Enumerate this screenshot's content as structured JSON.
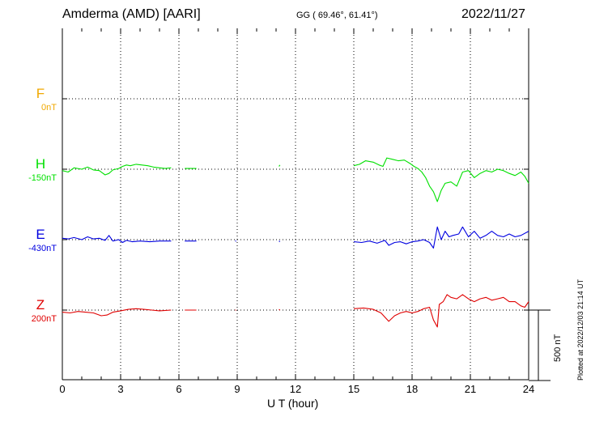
{
  "header": {
    "station": "Amderma (AMD)  [AARI]",
    "coords": "GG ( 69.46°,  61.41°)",
    "date": "2022/11/27"
  },
  "footnote": "Plotted at 2022/12/03 21:14 UT",
  "scale_bar": {
    "label": "500 nT",
    "value_nT": 500
  },
  "colors": {
    "F": "#f0a800",
    "H": "#00e000",
    "E": "#0000e0",
    "Z": "#e00000",
    "axis": "#000000"
  },
  "chart_data": {
    "type": "line",
    "xlabel": "U T (hour)",
    "xlim": [
      0,
      24
    ],
    "xticks": [
      "0",
      "3",
      "6",
      "9",
      "12",
      "15",
      "18",
      "21",
      "24"
    ],
    "grid": true,
    "channels": [
      {
        "name": "F",
        "offset_label": "0nT",
        "data": []
      },
      {
        "name": "H",
        "offset_label": "-150nT",
        "data": [
          [
            0,
            -10
          ],
          [
            0.3,
            -20
          ],
          [
            0.6,
            10
          ],
          [
            1.0,
            0
          ],
          [
            1.3,
            15
          ],
          [
            1.6,
            -5
          ],
          [
            1.9,
            -10
          ],
          [
            2.2,
            -40
          ],
          [
            2.4,
            -30
          ],
          [
            2.6,
            -5
          ],
          [
            2.9,
            5
          ],
          [
            3.1,
            20
          ],
          [
            3.3,
            30
          ],
          [
            3.5,
            25
          ],
          [
            3.8,
            35
          ],
          [
            4.1,
            30
          ],
          [
            4.4,
            25
          ],
          [
            4.7,
            15
          ],
          [
            5.0,
            10
          ],
          [
            5.3,
            5
          ],
          [
            5.6,
            10
          ],
          [
            null,
            null
          ],
          [
            6.3,
            5
          ],
          [
            6.9,
            5
          ],
          [
            null,
            null
          ],
          [
            11.15,
            20
          ],
          [
            11.2,
            30
          ],
          [
            null,
            null
          ],
          [
            15.0,
            25
          ],
          [
            15.3,
            35
          ],
          [
            15.6,
            60
          ],
          [
            16.0,
            50
          ],
          [
            16.3,
            30
          ],
          [
            16.5,
            20
          ],
          [
            16.7,
            80
          ],
          [
            17.0,
            70
          ],
          [
            17.3,
            60
          ],
          [
            17.6,
            65
          ],
          [
            17.9,
            40
          ],
          [
            18.1,
            20
          ],
          [
            18.3,
            5
          ],
          [
            18.5,
            -20
          ],
          [
            18.7,
            -60
          ],
          [
            18.9,
            -120
          ],
          [
            19.1,
            -160
          ],
          [
            19.3,
            -230
          ],
          [
            19.5,
            -150
          ],
          [
            19.7,
            -100
          ],
          [
            20.0,
            -90
          ],
          [
            20.3,
            -120
          ],
          [
            20.6,
            -20
          ],
          [
            20.9,
            -10
          ],
          [
            21.2,
            -60
          ],
          [
            21.5,
            -30
          ],
          [
            21.8,
            -10
          ],
          [
            22.1,
            -20
          ],
          [
            22.4,
            0
          ],
          [
            22.7,
            -10
          ],
          [
            23.0,
            -30
          ],
          [
            23.3,
            -45
          ],
          [
            23.6,
            -20
          ],
          [
            23.8,
            -50
          ],
          [
            24.0,
            -100
          ]
        ]
      },
      {
        "name": "E",
        "offset_label": "-430nT",
        "data": [
          [
            0,
            10
          ],
          [
            0.3,
            5
          ],
          [
            0.6,
            15
          ],
          [
            1.0,
            0
          ],
          [
            1.3,
            20
          ],
          [
            1.6,
            5
          ],
          [
            1.9,
            10
          ],
          [
            2.2,
            -5
          ],
          [
            2.4,
            30
          ],
          [
            2.6,
            -10
          ],
          [
            2.9,
            0
          ],
          [
            3.1,
            -20
          ],
          [
            3.3,
            -5
          ],
          [
            3.6,
            -15
          ],
          [
            4.0,
            -10
          ],
          [
            4.5,
            -15
          ],
          [
            5.0,
            -10
          ],
          [
            5.6,
            -10
          ],
          [
            null,
            null
          ],
          [
            6.3,
            -10
          ],
          [
            6.9,
            -10
          ],
          [
            null,
            null
          ],
          [
            8.9,
            -10
          ],
          [
            8.95,
            -10
          ],
          [
            null,
            null
          ],
          [
            11.15,
            -10
          ],
          [
            11.2,
            -15
          ],
          [
            null,
            null
          ],
          [
            15.0,
            -15
          ],
          [
            15.4,
            -20
          ],
          [
            15.8,
            -10
          ],
          [
            16.2,
            -25
          ],
          [
            16.6,
            -5
          ],
          [
            16.8,
            -40
          ],
          [
            17.1,
            -20
          ],
          [
            17.4,
            -15
          ],
          [
            17.7,
            -30
          ],
          [
            18.0,
            -15
          ],
          [
            18.3,
            -10
          ],
          [
            18.6,
            0
          ],
          [
            18.9,
            -20
          ],
          [
            19.1,
            -60
          ],
          [
            19.3,
            90
          ],
          [
            19.5,
            0
          ],
          [
            19.7,
            60
          ],
          [
            19.9,
            20
          ],
          [
            20.1,
            30
          ],
          [
            20.4,
            40
          ],
          [
            20.6,
            90
          ],
          [
            20.9,
            20
          ],
          [
            21.2,
            60
          ],
          [
            21.5,
            10
          ],
          [
            21.8,
            30
          ],
          [
            22.1,
            60
          ],
          [
            22.4,
            30
          ],
          [
            22.7,
            20
          ],
          [
            23.0,
            40
          ],
          [
            23.3,
            20
          ],
          [
            23.6,
            30
          ],
          [
            24.0,
            60
          ]
        ]
      },
      {
        "name": "Z",
        "offset_label": "200nT",
        "data": [
          [
            0,
            -15
          ],
          [
            0.4,
            -20
          ],
          [
            0.8,
            -10
          ],
          [
            1.2,
            -15
          ],
          [
            1.6,
            -20
          ],
          [
            2.0,
            -40
          ],
          [
            2.3,
            -35
          ],
          [
            2.6,
            -15
          ],
          [
            3.0,
            -5
          ],
          [
            3.4,
            5
          ],
          [
            3.8,
            10
          ],
          [
            4.2,
            5
          ],
          [
            4.6,
            0
          ],
          [
            5.0,
            -5
          ],
          [
            5.6,
            0
          ],
          [
            null,
            null
          ],
          [
            6.3,
            0
          ],
          [
            6.9,
            0
          ],
          [
            null,
            null
          ],
          [
            8.9,
            0
          ],
          [
            8.95,
            0
          ],
          [
            null,
            null
          ],
          [
            11.15,
            5
          ],
          [
            11.2,
            0
          ],
          [
            null,
            null
          ],
          [
            15.0,
            10
          ],
          [
            15.5,
            15
          ],
          [
            16.0,
            5
          ],
          [
            16.4,
            -20
          ],
          [
            16.8,
            -80
          ],
          [
            17.1,
            -40
          ],
          [
            17.4,
            -20
          ],
          [
            17.7,
            -10
          ],
          [
            18.0,
            -20
          ],
          [
            18.3,
            -10
          ],
          [
            18.6,
            10
          ],
          [
            18.9,
            20
          ],
          [
            19.1,
            -70
          ],
          [
            19.3,
            -120
          ],
          [
            19.4,
            40
          ],
          [
            19.6,
            60
          ],
          [
            19.8,
            110
          ],
          [
            20.0,
            90
          ],
          [
            20.3,
            80
          ],
          [
            20.6,
            110
          ],
          [
            20.9,
            80
          ],
          [
            21.2,
            60
          ],
          [
            21.5,
            80
          ],
          [
            21.8,
            90
          ],
          [
            22.1,
            70
          ],
          [
            22.4,
            80
          ],
          [
            22.7,
            90
          ],
          [
            23.0,
            60
          ],
          [
            23.3,
            60
          ],
          [
            23.6,
            30
          ],
          [
            23.8,
            20
          ],
          [
            24.0,
            60
          ]
        ]
      }
    ]
  }
}
